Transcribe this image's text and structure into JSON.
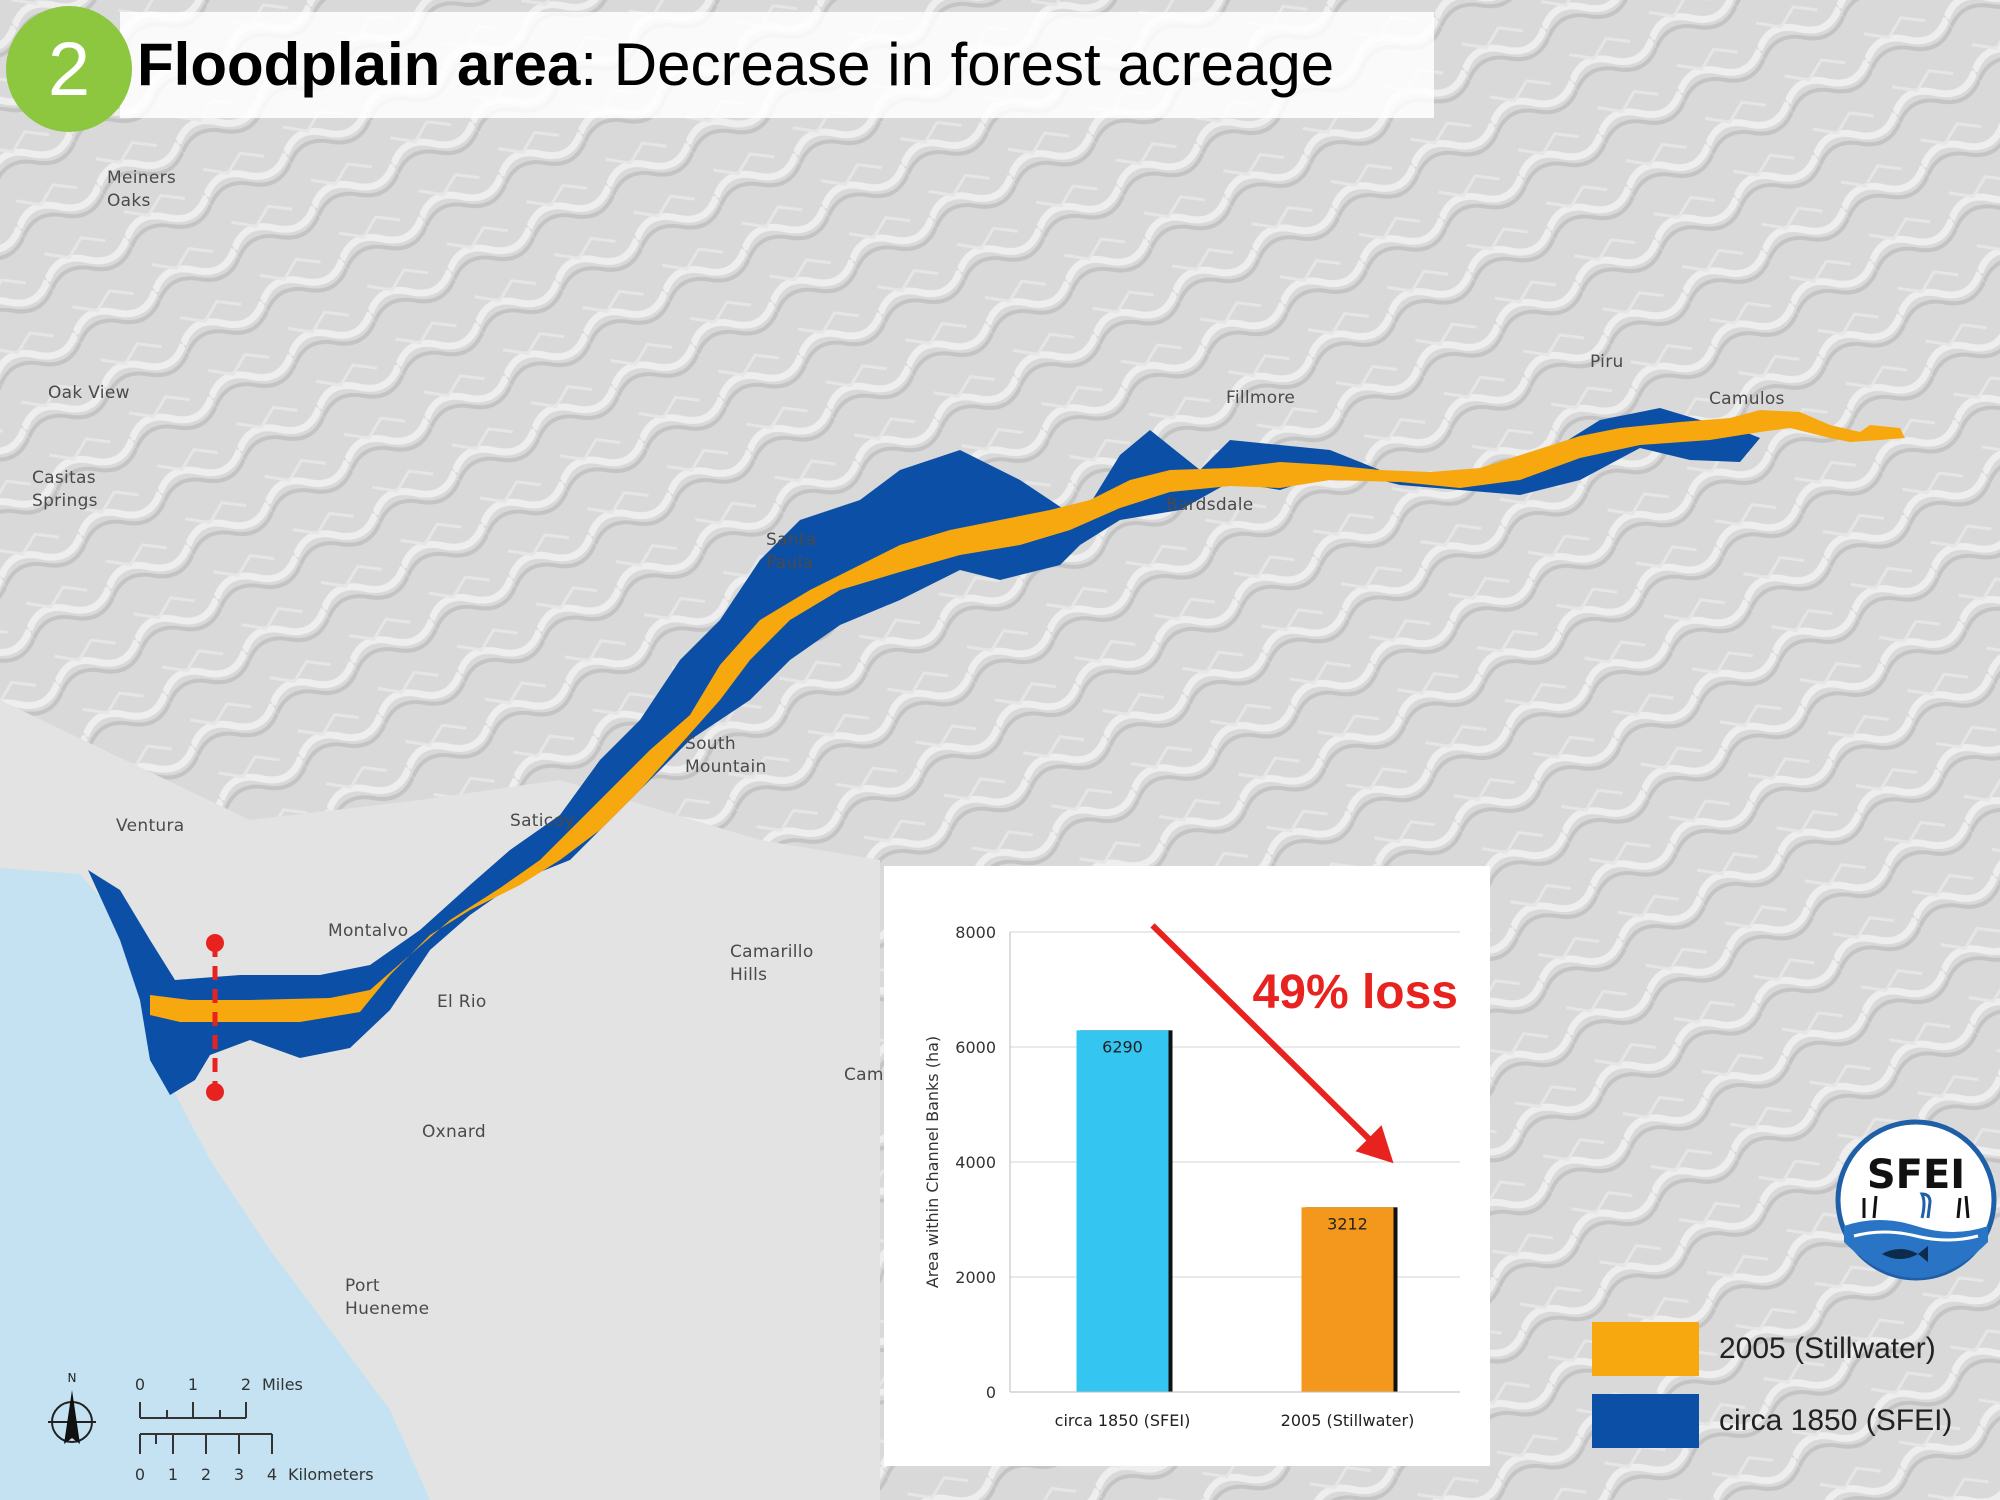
{
  "title": {
    "step_number": "2",
    "bold": "Floodplain area",
    "rest": ": Decrease in forest acreage"
  },
  "places": [
    {
      "id": "meiners-oaks",
      "label": "Meiners\nOaks"
    },
    {
      "id": "oak-view",
      "label": "Oak View"
    },
    {
      "id": "casitas-springs",
      "label": "Casitas\nSprings"
    },
    {
      "id": "ventura",
      "label": "Ventura"
    },
    {
      "id": "montalvo",
      "label": "Montalvo"
    },
    {
      "id": "el-rio",
      "label": "El Rio"
    },
    {
      "id": "oxnard",
      "label": "Oxnard"
    },
    {
      "id": "port-hueneme",
      "label": "Port\nHueneme"
    },
    {
      "id": "saticoy",
      "label": "Saticoy"
    },
    {
      "id": "south-mountain",
      "label": "South\nMountain"
    },
    {
      "id": "santa-paula",
      "label": "Santa\nPaula"
    },
    {
      "id": "camarillo-hills",
      "label": "Camarillo\nHills"
    },
    {
      "id": "camarillo-cut",
      "label": "Cam"
    },
    {
      "id": "fillmore",
      "label": "Fillmore"
    },
    {
      "id": "bardsdale",
      "label": "Bardsdale"
    },
    {
      "id": "piru",
      "label": "Piru"
    },
    {
      "id": "camulos",
      "label": "Camulos"
    }
  ],
  "colors": {
    "ocean": "#c4e2f2",
    "terrain": "#dcdcdc",
    "forest_2005": "#f7a80f",
    "forest_1850": "#0b4fa6",
    "accent_red": "#e8231f",
    "badge_green": "#8dc63f"
  },
  "legend": [
    {
      "label": "2005 (Stillwater)",
      "color": "#f7a80f"
    },
    {
      "label": "circa 1850 (SFEI)",
      "color": "#0b4fa6"
    }
  ],
  "scale_bar": {
    "miles_ticks": [
      "0",
      "1",
      "2"
    ],
    "miles_unit": "Miles",
    "km_ticks": [
      "0",
      "1",
      "2",
      "3",
      "4"
    ],
    "km_unit": "Kilometers"
  },
  "north_arrow": {
    "label": "N"
  },
  "logo": {
    "text": "SFEI"
  },
  "chart_data": {
    "type": "bar",
    "categories": [
      "circa 1850 (SFEI)",
      "2005 (Stillwater)"
    ],
    "values": [
      6290,
      3212
    ],
    "value_labels": [
      "6290",
      "3212"
    ],
    "colors": [
      "#34c6f0",
      "#f4981d"
    ],
    "ylabel": "Area within Channel Banks (ha)",
    "ylim": [
      0,
      8000
    ],
    "yticks": [
      0,
      2000,
      4000,
      6000,
      8000
    ],
    "grid": true,
    "annotation": "49% loss"
  }
}
